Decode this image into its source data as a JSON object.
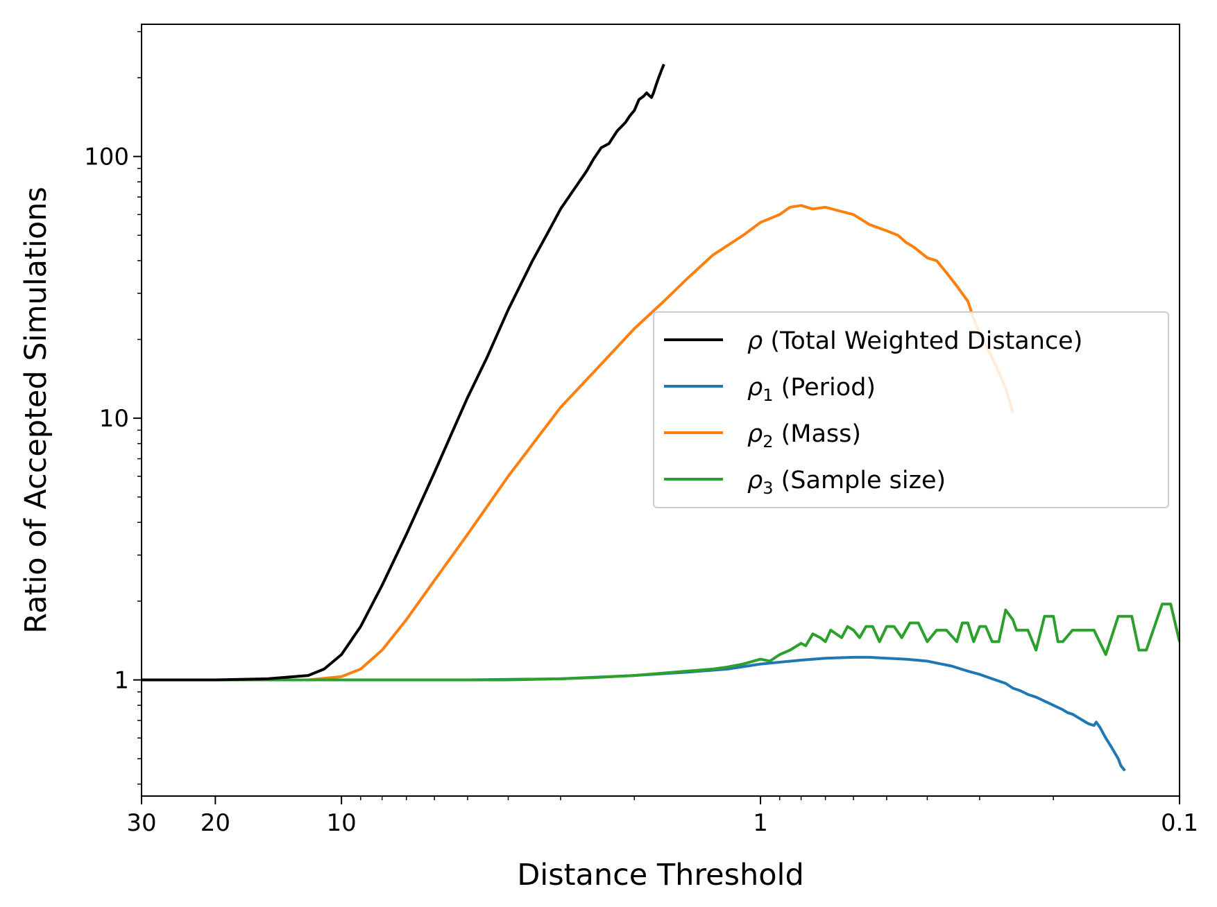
{
  "chart_data": {
    "type": "line",
    "title": "",
    "xlabel": "Distance Threshold",
    "ylabel": "Ratio of Accepted Simulations",
    "xscale": "log-reversed",
    "yscale": "log",
    "xlim": [
      30,
      0.1
    ],
    "ylim": [
      0.36,
      320
    ],
    "x_ticks": [
      {
        "value": 30,
        "label": "30"
      },
      {
        "value": 20,
        "label": "20"
      },
      {
        "value": 10,
        "label": "10"
      },
      {
        "value": 1,
        "label": "1"
      },
      {
        "value": 0.1,
        "label": "0.1"
      }
    ],
    "y_ticks": [
      {
        "value": 1,
        "label": "1"
      },
      {
        "value": 10,
        "label": "10"
      },
      {
        "value": 100,
        "label": "100"
      }
    ],
    "legend_position": "center-right",
    "series": [
      {
        "name": "ρ (Total Weighted Distance)",
        "legend_symbol": "ρ",
        "legend_subscript": "",
        "legend_text": " (Total Weighted Distance)",
        "color": "#000000",
        "x": [
          30,
          20,
          15,
          12,
          11,
          10,
          9,
          8,
          7,
          6,
          5.5,
          5,
          4.5,
          4,
          3.5,
          3.2,
          3,
          2.8,
          2.6,
          2.5,
          2.4,
          2.3,
          2.2,
          2.1,
          2.05,
          2.0,
          1.95,
          1.9,
          1.87,
          1.85,
          1.82,
          1.8,
          1.78,
          1.75,
          1.72,
          1.7
        ],
        "y": [
          1,
          1,
          1.01,
          1.04,
          1.1,
          1.25,
          1.6,
          2.3,
          3.6,
          6.2,
          8.5,
          12,
          17,
          26,
          40,
          52,
          63,
          74,
          88,
          98,
          108,
          112,
          125,
          135,
          143,
          150,
          165,
          170,
          175,
          172,
          168,
          175,
          185,
          200,
          215,
          225
        ]
      },
      {
        "name": "ρ1 (Period)",
        "legend_symbol": "ρ",
        "legend_subscript": "1",
        "legend_text": " (Period)",
        "color": "#1f77b4",
        "x": [
          30,
          5,
          3,
          2,
          1.5,
          1.2,
          1,
          0.8,
          0.7,
          0.6,
          0.55,
          0.5,
          0.45,
          0.4,
          0.38,
          0.35,
          0.32,
          0.3,
          0.28,
          0.26,
          0.25,
          0.24,
          0.23,
          0.22,
          0.21,
          0.2,
          0.19,
          0.185,
          0.18,
          0.175,
          0.17,
          0.165,
          0.16,
          0.158,
          0.155,
          0.15,
          0.145,
          0.14,
          0.138,
          0.135
        ],
        "y": [
          1,
          1,
          1.01,
          1.04,
          1.07,
          1.1,
          1.15,
          1.19,
          1.21,
          1.22,
          1.22,
          1.21,
          1.2,
          1.18,
          1.16,
          1.13,
          1.08,
          1.05,
          1.01,
          0.97,
          0.93,
          0.91,
          0.88,
          0.86,
          0.83,
          0.8,
          0.77,
          0.75,
          0.74,
          0.72,
          0.7,
          0.68,
          0.67,
          0.69,
          0.66,
          0.6,
          0.55,
          0.5,
          0.47,
          0.45
        ]
      },
      {
        "name": "ρ2 (Mass)",
        "legend_symbol": "ρ",
        "legend_subscript": "2",
        "legend_text": " (Mass)",
        "color": "#ff7f0e",
        "x": [
          30,
          12,
          10,
          9,
          8,
          7,
          6,
          5,
          4,
          3,
          2.5,
          2,
          1.7,
          1.5,
          1.3,
          1.1,
          1,
          0.9,
          0.85,
          0.8,
          0.75,
          0.7,
          0.65,
          0.6,
          0.55,
          0.5,
          0.47,
          0.45,
          0.43,
          0.4,
          0.38,
          0.36,
          0.34,
          0.32,
          0.31,
          0.3,
          0.29,
          0.28,
          0.27,
          0.26,
          0.25
        ],
        "y": [
          1,
          1,
          1.03,
          1.1,
          1.3,
          1.7,
          2.4,
          3.6,
          6,
          11,
          15,
          22,
          28,
          34,
          42,
          50,
          56,
          60,
          64,
          65,
          63,
          64,
          62,
          60,
          55,
          52,
          50,
          47,
          45,
          41,
          40,
          36,
          32,
          28,
          24,
          21,
          19,
          17,
          15,
          13,
          10.5
        ]
      },
      {
        "name": "ρ3 (Sample size)",
        "legend_symbol": "ρ",
        "legend_subscript": "3",
        "legend_text": " (Sample size)",
        "color": "#2ca02c",
        "x": [
          30,
          4,
          3,
          2.5,
          2,
          1.5,
          1.3,
          1.2,
          1.1,
          1.0,
          0.95,
          0.9,
          0.85,
          0.8,
          0.78,
          0.75,
          0.72,
          0.7,
          0.68,
          0.66,
          0.64,
          0.62,
          0.6,
          0.58,
          0.56,
          0.54,
          0.52,
          0.5,
          0.48,
          0.46,
          0.44,
          0.42,
          0.4,
          0.38,
          0.36,
          0.34,
          0.33,
          0.32,
          0.31,
          0.3,
          0.29,
          0.28,
          0.27,
          0.26,
          0.25,
          0.245,
          0.24,
          0.23,
          0.22,
          0.21,
          0.2,
          0.195,
          0.19,
          0.18,
          0.17,
          0.16,
          0.15,
          0.14,
          0.13,
          0.125,
          0.12,
          0.11,
          0.105,
          0.1
        ],
        "y": [
          1,
          1,
          1.01,
          1.02,
          1.04,
          1.08,
          1.1,
          1.12,
          1.15,
          1.2,
          1.18,
          1.25,
          1.3,
          1.38,
          1.35,
          1.5,
          1.45,
          1.4,
          1.55,
          1.5,
          1.45,
          1.6,
          1.55,
          1.45,
          1.6,
          1.6,
          1.4,
          1.6,
          1.6,
          1.45,
          1.65,
          1.65,
          1.4,
          1.55,
          1.55,
          1.4,
          1.65,
          1.65,
          1.4,
          1.6,
          1.6,
          1.4,
          1.4,
          1.85,
          1.7,
          1.55,
          1.55,
          1.55,
          1.3,
          1.75,
          1.75,
          1.4,
          1.4,
          1.55,
          1.55,
          1.55,
          1.25,
          1.75,
          1.75,
          1.3,
          1.3,
          1.95,
          1.95,
          1.4
        ]
      }
    ]
  }
}
